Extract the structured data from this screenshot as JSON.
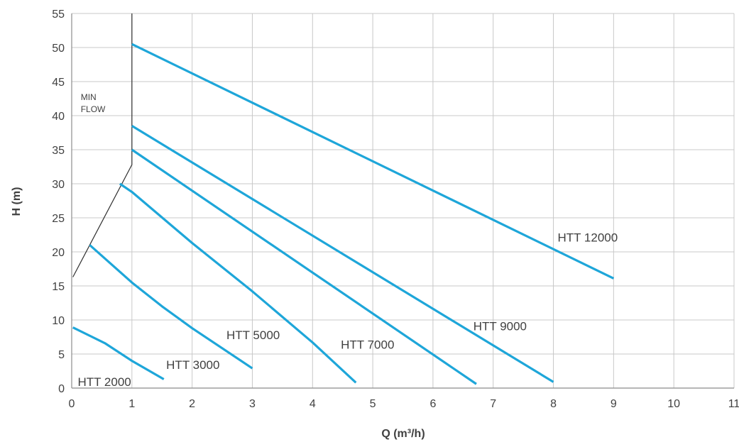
{
  "chart_data": {
    "type": "line",
    "title": "",
    "xlabel": "Q (m³/h)",
    "ylabel": "H (m)",
    "xlim": [
      0,
      11
    ],
    "ylim": [
      0,
      55
    ],
    "x_ticks": [
      0,
      1,
      2,
      3,
      4,
      5,
      6,
      7,
      8,
      9,
      10,
      11
    ],
    "y_ticks": [
      0,
      5,
      10,
      15,
      20,
      25,
      30,
      35,
      40,
      45,
      50,
      55
    ],
    "grid": true,
    "line_color": "#1ea6d9",
    "series": [
      {
        "name": "HTT 2000",
        "points": [
          [
            0.02,
            8.9
          ],
          [
            0.55,
            6.6
          ],
          [
            1.0,
            4.0
          ],
          [
            1.53,
            1.3
          ]
        ],
        "label_at": [
          0.1,
          0.3
        ]
      },
      {
        "name": "HTT 3000",
        "points": [
          [
            0.3,
            21.0
          ],
          [
            1.0,
            15.5
          ],
          [
            1.5,
            12.0
          ],
          [
            2.0,
            8.8
          ],
          [
            3.0,
            2.9
          ]
        ],
        "label_at": [
          1.57,
          2.8
        ]
      },
      {
        "name": "HTT 5000",
        "points": [
          [
            0.8,
            30.0
          ],
          [
            1.0,
            28.8
          ],
          [
            2.0,
            21.3
          ],
          [
            3.0,
            14.2
          ],
          [
            4.0,
            6.7
          ],
          [
            4.72,
            0.8
          ]
        ],
        "label_at": [
          2.57,
          7.2
        ]
      },
      {
        "name": "HTT 7000",
        "points": [
          [
            1.0,
            35.0
          ],
          [
            6.72,
            0.6
          ]
        ],
        "label_at": [
          4.47,
          5.8
        ]
      },
      {
        "name": "HTT 9000",
        "points": [
          [
            1.0,
            38.5
          ],
          [
            8.0,
            0.9
          ]
        ],
        "label_at": [
          6.67,
          8.5
        ]
      },
      {
        "name": "HTT 12000",
        "points": [
          [
            1.0,
            50.5
          ],
          [
            9.0,
            16.1
          ]
        ],
        "label_at": [
          8.07,
          21.5
        ]
      }
    ],
    "min_flow_line": {
      "label": [
        "MIN",
        "FLOW"
      ],
      "points": [
        [
          0.02,
          16.3
        ],
        [
          1.0,
          32.8
        ],
        [
          1.0,
          55.0
        ]
      ],
      "label_at": [
        0.15,
        42.3
      ]
    }
  }
}
